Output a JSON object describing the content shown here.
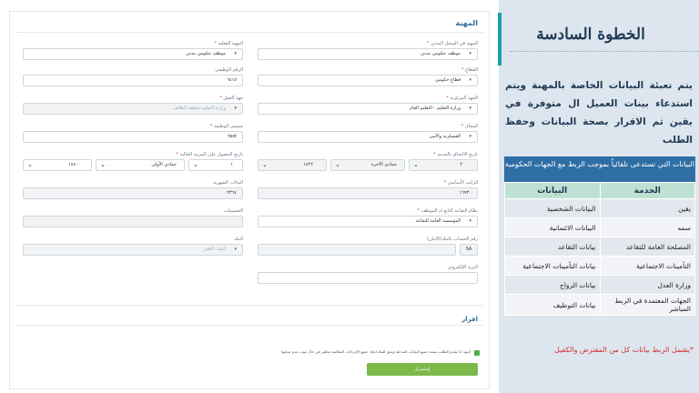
{
  "form": {
    "title": "المهنة",
    "fields": {
      "actual_job_label": "المهنة الفعلية",
      "actual_job_value": "موظف حكومي مدني",
      "civil_job_label": "المهنة في السجل المدني",
      "civil_job_value": "موظف حكومي مدني",
      "job_number_label": "الرقم الوظيفي",
      "job_number_value": "٦٤١٥",
      "sector_label": "القطاع",
      "sector_value": "قطاع حكومي",
      "employer_label": "جهة العمل",
      "employer_value": "وزارة التعليم-منطقة الطائف",
      "central_entity_label": "الجهة المركزية",
      "central_entity_value": "وزارة التعليم - التعليم العام",
      "job_title_label": "مسمى الوظيفة",
      "job_title_value": "test",
      "field_label": "المجال",
      "field_value": "العسكرية والأمن",
      "current_rank_date_label": "تاريخ الحصول على المرتبة الحالية",
      "rank_year": "١٤٤٠",
      "rank_month": "جمادى الأولى",
      "rank_day": "١",
      "join_date_label": "تاريخ الالتحاق بالخدمة",
      "join_year": "١٤٢٢",
      "join_month": "جمادى الآخرة",
      "join_day": "٢",
      "allowances_label": "البدلات الشهرية",
      "allowances_value": "٢٣٦٤",
      "basic_salary_label": "الراتب الأساسي",
      "basic_salary_value": "١٦٩٣٠",
      "deductions_label": "الحسميات",
      "retirement_system_label": "نظام التقاعد التابع له الموظف",
      "retirement_system_value": "المؤسسة العامة للتقاعد",
      "bank_label": "البنك",
      "bank_value": "البنك الأهلي",
      "iban_label": "رقم الحساب بالبنك(الآيبان)",
      "iban_prefix": "SA",
      "email_label": "البريد الإلكتروني"
    },
    "ack_title": "اقرار",
    "ack_text": "أتعهد أنا مقدم الطلب بصحة جميع البيانات المدخلة ويحق للبنك اتخاذ جميع الإجراءات النظامية تجاهي في حال ثبوت عدم صحتها",
    "save_label": "إستمرار"
  },
  "info": {
    "step_title": "الخطوة السادسة",
    "intro": "يتم تعبئة البيانات الخاصة بالمهنة ويتم استدعاء بينات العميل ال متوفرة في يقين ثم الاقرار بصحة البيانات وحفظ الطلب",
    "table_caption": "البيانات التي تستدعى تلقائياً بموجب الربط مع الجهات الحكومية",
    "col_service": "الخدمة",
    "col_data": "البيانات",
    "rows": [
      {
        "service": "يقين",
        "data": "البيانات الشخصية"
      },
      {
        "service": "سمه",
        "data": "البيانات الائتمانية"
      },
      {
        "service": "المصلحة العامة للتقاعد",
        "data": "بيانات التقاعد"
      },
      {
        "service": "التأمينات الاجتماعية",
        "data": "بيانات التأمينات الاجتماعية"
      },
      {
        "service": "وزارة العدل",
        "data": "بيانات الزواج"
      },
      {
        "service": "الجهات المعتمدة في الربط المباشر",
        "data": "بيانات التوظيف"
      }
    ],
    "footnote": "*يشمل الربط بيانات كل من المقترض والكفيل"
  }
}
